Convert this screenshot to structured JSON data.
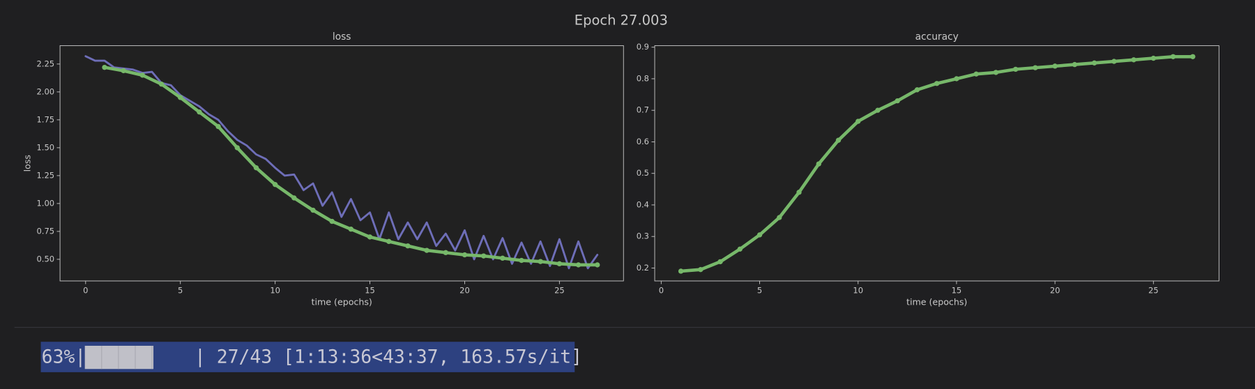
{
  "suptitle": "Epoch 27.003",
  "chart_data": [
    {
      "type": "line",
      "title": "loss",
      "xlabel": "time (epochs)",
      "ylabel": "loss",
      "xlim": [
        -1.35,
        28.38
      ],
      "ylim": [
        0.306,
        2.415
      ],
      "xticks": [
        0,
        5,
        10,
        15,
        20,
        25
      ],
      "yticks": [
        2.25,
        {
          "value": 2.0,
          "label": "2.00"
        },
        1.75,
        {
          "value": 1.5,
          "label": "1.50"
        },
        1.25,
        {
          "value": 1.0,
          "label": "1.00"
        },
        0.75,
        {
          "value": 0.5,
          "label": "0.50"
        }
      ],
      "series": [
        {
          "color": "#6e6eb8",
          "width": 2.5,
          "marker": false,
          "x": [
            0,
            0.5,
            1,
            1.5,
            2,
            2.5,
            3,
            3.5,
            4,
            4.5,
            5,
            5.5,
            6,
            6.5,
            7,
            7.5,
            8,
            8.5,
            9,
            9.5,
            10,
            10.5,
            11,
            11.5,
            12,
            12.5,
            13,
            13.5,
            14,
            14.5,
            15,
            15.5,
            16,
            16.5,
            17,
            17.5,
            18,
            18.5,
            19,
            19.5,
            20,
            20.5,
            21,
            21.5,
            22,
            22.5,
            23,
            23.5,
            24,
            24.5,
            25,
            25.5,
            26,
            26.5,
            27
          ],
          "values": [
            2.32,
            2.28,
            2.28,
            2.22,
            2.21,
            2.2,
            2.17,
            2.18,
            2.08,
            2.06,
            1.97,
            1.92,
            1.87,
            1.8,
            1.75,
            1.65,
            1.57,
            1.52,
            1.44,
            1.4,
            1.32,
            1.25,
            1.26,
            1.12,
            1.18,
            0.98,
            1.1,
            0.88,
            1.04,
            0.85,
            0.92,
            0.68,
            0.92,
            0.68,
            0.83,
            0.68,
            0.83,
            0.62,
            0.73,
            0.58,
            0.76,
            0.5,
            0.71,
            0.5,
            0.69,
            0.46,
            0.65,
            0.46,
            0.66,
            0.44,
            0.68,
            0.42,
            0.66,
            0.42,
            0.54
          ]
        },
        {
          "color": "#77b86a",
          "width": 4,
          "marker": true,
          "x": [
            1,
            2,
            3,
            4,
            5,
            6,
            7,
            8,
            9,
            10,
            11,
            12,
            13,
            14,
            15,
            16,
            17,
            18,
            19,
            20,
            21,
            22,
            23,
            24,
            25,
            26,
            27
          ],
          "values": [
            2.22,
            2.19,
            2.15,
            2.07,
            1.95,
            1.82,
            1.69,
            1.5,
            1.32,
            1.17,
            1.05,
            0.94,
            0.84,
            0.77,
            0.7,
            0.66,
            0.62,
            0.58,
            0.56,
            0.54,
            0.53,
            0.51,
            0.49,
            0.48,
            0.46,
            0.45,
            0.45
          ]
        }
      ]
    },
    {
      "type": "line",
      "title": "accuracy",
      "xlabel": "time (epochs)",
      "xlim": [
        -0.33,
        28.33
      ],
      "ylim": [
        0.159,
        0.905
      ],
      "xticks": [
        0,
        5,
        10,
        15,
        20,
        25
      ],
      "yticks": [
        0.2,
        0.3,
        0.4,
        0.5,
        0.6,
        0.7,
        0.8,
        0.9
      ],
      "series": [
        {
          "color": "#77b86a",
          "width": 4,
          "marker": true,
          "x": [
            1,
            2,
            3,
            4,
            5,
            6,
            7,
            8,
            9,
            10,
            11,
            12,
            13,
            14,
            15,
            16,
            17,
            18,
            19,
            20,
            21,
            22,
            23,
            24,
            25,
            26,
            27
          ],
          "values": [
            0.19,
            0.195,
            0.22,
            0.26,
            0.305,
            0.36,
            0.44,
            0.53,
            0.605,
            0.665,
            0.7,
            0.73,
            0.765,
            0.785,
            0.8,
            0.815,
            0.82,
            0.83,
            0.835,
            0.84,
            0.845,
            0.85,
            0.855,
            0.86,
            0.865,
            0.87,
            0.87
          ]
        }
      ]
    }
  ],
  "progress": {
    "value": 63,
    "value_label": "63%|",
    "rest": "| 27/43 [1:13:36<43:37, 163.57s/it]"
  }
}
